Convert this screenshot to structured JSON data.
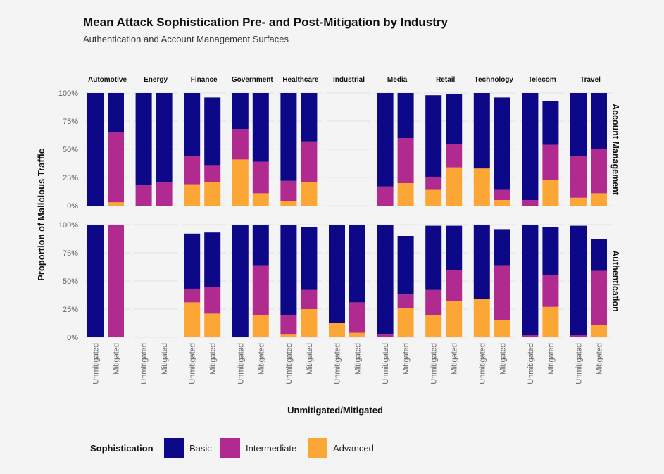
{
  "chart_data": {
    "type": "bar",
    "stacked": true,
    "title": "Mean Attack Sophistication Pre- and Post-Mitigation by Industry",
    "subtitle": "Authentication and Account Management Surfaces",
    "xlabel": "Unmitigated/Mitigated",
    "ylabel": "Proportion of Malicious Traffic",
    "ylim": [
      0,
      1
    ],
    "yticks": [
      "0%",
      "25%",
      "50%",
      "75%",
      "100%"
    ],
    "categories": [
      "Unmitigated",
      "Mitigated"
    ],
    "industries": [
      "Automotive",
      "Energy",
      "Finance",
      "Government",
      "Healthcare",
      "Industrial",
      "Media",
      "Retail",
      "Technology",
      "Telecom",
      "Travel"
    ],
    "rows": [
      "Account Management",
      "Authentication"
    ],
    "legend": {
      "title": "Sophistication",
      "position": "bottom",
      "entries": [
        {
          "name": "Basic",
          "color": "#0d0887"
        },
        {
          "name": "Intermediate",
          "color": "#b12a90"
        },
        {
          "name": "Advanced",
          "color": "#fca636"
        }
      ]
    },
    "panels": {
      "Account Management": {
        "Automotive": {
          "Unmitigated": [
            1.0,
            0.0,
            0.0
          ],
          "Mitigated": [
            0.35,
            0.62,
            0.03
          ]
        },
        "Energy": {
          "Unmitigated": [
            0.82,
            0.18,
            0.0
          ],
          "Mitigated": [
            0.79,
            0.21,
            0.0
          ]
        },
        "Finance": {
          "Unmitigated": [
            0.56,
            0.25,
            0.19
          ],
          "Mitigated": [
            0.6,
            0.15,
            0.21
          ]
        },
        "Government": {
          "Unmitigated": [
            0.32,
            0.27,
            0.41
          ],
          "Mitigated": [
            0.61,
            0.28,
            0.11
          ]
        },
        "Healthcare": {
          "Unmitigated": [
            0.78,
            0.18,
            0.04
          ],
          "Mitigated": [
            0.43,
            0.36,
            0.21
          ]
        },
        "Industrial": null,
        "Media": {
          "Unmitigated": [
            0.83,
            0.17,
            0.0
          ],
          "Mitigated": [
            0.4,
            0.4,
            0.2
          ]
        },
        "Retail": {
          "Unmitigated": [
            0.73,
            0.11,
            0.14
          ],
          "Mitigated": [
            0.44,
            0.21,
            0.34
          ]
        },
        "Technology": {
          "Unmitigated": [
            0.67,
            0.0,
            0.33
          ],
          "Mitigated": [
            0.82,
            0.09,
            0.05
          ]
        },
        "Telecom": {
          "Unmitigated": [
            0.95,
            0.05,
            0.0
          ],
          "Mitigated": [
            0.39,
            0.31,
            0.23
          ]
        },
        "Travel": {
          "Unmitigated": [
            0.56,
            0.37,
            0.07
          ],
          "Mitigated": [
            0.5,
            0.39,
            0.11
          ]
        }
      },
      "Authentication": {
        "Automotive": {
          "Unmitigated": [
            1.0,
            0.0,
            0.0
          ],
          "Mitigated": [
            0.0,
            1.0,
            0.0
          ]
        },
        "Energy": null,
        "Finance": {
          "Unmitigated": [
            0.49,
            0.12,
            0.31
          ],
          "Mitigated": [
            0.48,
            0.24,
            0.21
          ]
        },
        "Government": {
          "Unmitigated": [
            1.0,
            0.0,
            0.0
          ],
          "Mitigated": [
            0.36,
            0.44,
            0.2
          ]
        },
        "Healthcare": {
          "Unmitigated": [
            0.8,
            0.17,
            0.03
          ],
          "Mitigated": [
            0.56,
            0.17,
            0.25
          ]
        },
        "Industrial": {
          "Unmitigated": [
            0.87,
            0.0,
            0.13
          ],
          "Mitigated": [
            0.69,
            0.27,
            0.04
          ]
        },
        "Media": {
          "Unmitigated": [
            0.97,
            0.03,
            0.0
          ],
          "Mitigated": [
            0.52,
            0.12,
            0.26
          ]
        },
        "Retail": {
          "Unmitigated": [
            0.57,
            0.22,
            0.2
          ],
          "Mitigated": [
            0.39,
            0.28,
            0.32
          ]
        },
        "Technology": {
          "Unmitigated": [
            0.66,
            0.0,
            0.34
          ],
          "Mitigated": [
            0.32,
            0.49,
            0.15
          ]
        },
        "Telecom": {
          "Unmitigated": [
            0.98,
            0.02,
            0.0
          ],
          "Mitigated": [
            0.43,
            0.28,
            0.27
          ]
        },
        "Travel": {
          "Unmitigated": [
            0.97,
            0.02,
            0.0
          ],
          "Mitigated": [
            0.28,
            0.48,
            0.11
          ]
        }
      }
    }
  }
}
